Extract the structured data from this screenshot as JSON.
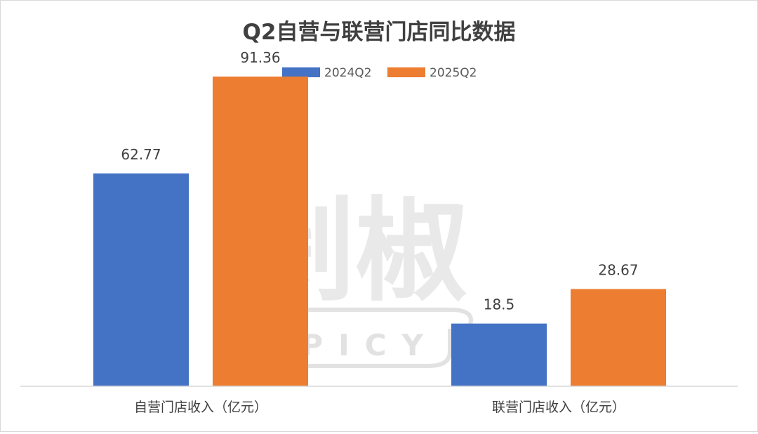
{
  "watermark": {
    "text": "剁椒",
    "subtext": "SPICY",
    "color": "#c8c8c8"
  },
  "chart_data": {
    "type": "bar",
    "title": "Q2自营与联营门店同比数据",
    "categories": [
      "自营门店收入（亿元）",
      "联营门店收入（亿元）"
    ],
    "series": [
      {
        "name": "2024Q2",
        "color": "#4472c4",
        "values": [
          62.77,
          18.5
        ]
      },
      {
        "name": "2025Q2",
        "color": "#ed7d31",
        "values": [
          91.36,
          28.67
        ]
      }
    ],
    "ylim": [
      0,
      100
    ],
    "grid": false,
    "legend_position": "top-center",
    "data_labels": true
  }
}
